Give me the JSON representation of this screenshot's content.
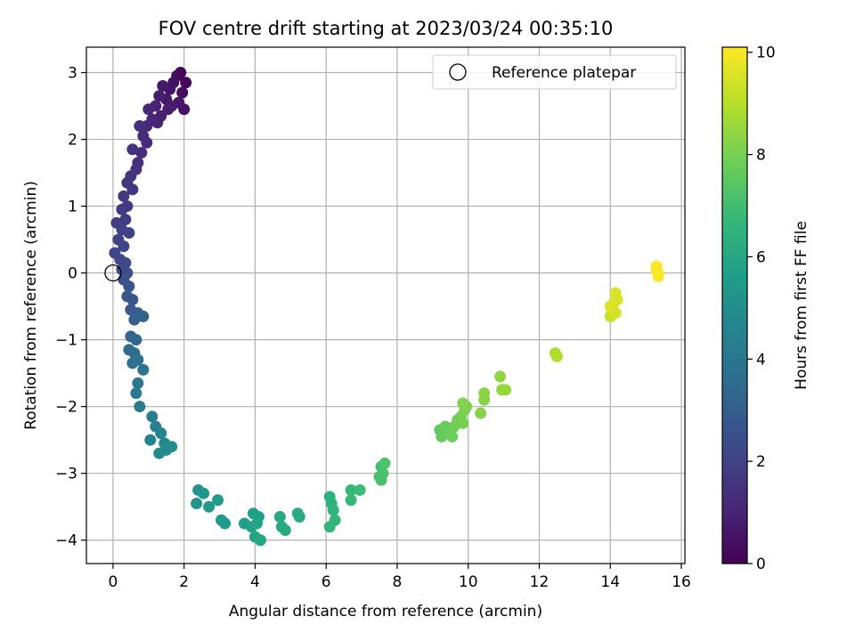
{
  "chart_data": {
    "type": "scatter",
    "title": "FOV centre drift starting at 2023/03/24 00:35:10",
    "xlabel": "Angular distance from reference (arcmin)",
    "ylabel": "Rotation from reference (arcmin)",
    "xlim": [
      -0.75,
      16.1
    ],
    "ylim": [
      -4.35,
      3.38
    ],
    "xticks": [
      0,
      2,
      4,
      6,
      8,
      10,
      12,
      14,
      16
    ],
    "yticks": [
      -4,
      -3,
      -2,
      -1,
      0,
      1,
      2,
      3
    ],
    "grid": true,
    "legend": {
      "position": "top-right",
      "entries": [
        "Reference platepar"
      ]
    },
    "reference_point": {
      "x": 0,
      "y": 0
    },
    "colorbar": {
      "label": "Hours from first FF file",
      "range": [
        0,
        10.1
      ],
      "ticks": [
        0,
        2,
        4,
        6,
        8,
        10
      ],
      "colormap": "viridis"
    },
    "series": [
      {
        "points": [
          [
            1.9,
            3.0,
            0.05
          ],
          [
            2.05,
            2.85,
            0.15
          ],
          [
            1.8,
            2.95,
            0.25
          ],
          [
            1.95,
            2.7,
            0.35
          ],
          [
            1.7,
            2.85,
            0.45
          ],
          [
            2.0,
            2.45,
            0.5
          ],
          [
            1.6,
            2.75,
            0.55
          ],
          [
            1.85,
            2.55,
            0.6
          ],
          [
            1.5,
            2.6,
            0.65
          ],
          [
            1.4,
            2.8,
            0.7
          ],
          [
            1.65,
            2.5,
            0.75
          ],
          [
            1.3,
            2.65,
            0.8
          ],
          [
            1.55,
            2.45,
            0.85
          ],
          [
            1.35,
            2.35,
            0.9
          ],
          [
            1.2,
            2.5,
            0.95
          ],
          [
            1.25,
            2.25,
            1.0
          ],
          [
            1.1,
            2.3,
            1.05
          ],
          [
            1.0,
            2.45,
            1.1
          ],
          [
            0.95,
            2.2,
            1.15
          ],
          [
            0.85,
            2.05,
            1.2
          ],
          [
            0.95,
            1.95,
            1.25
          ],
          [
            0.8,
            1.8,
            1.3
          ],
          [
            0.75,
            2.2,
            1.35
          ],
          [
            0.7,
            1.65,
            1.4
          ],
          [
            0.55,
            1.85,
            1.45
          ],
          [
            0.65,
            1.55,
            1.5
          ],
          [
            0.5,
            1.45,
            1.55
          ],
          [
            0.4,
            1.35,
            1.6
          ],
          [
            0.55,
            1.25,
            1.65
          ],
          [
            0.3,
            1.15,
            1.7
          ],
          [
            0.4,
            1.0,
            1.75
          ],
          [
            0.25,
            0.95,
            1.8
          ],
          [
            0.35,
            0.8,
            1.85
          ],
          [
            0.1,
            0.75,
            1.9
          ],
          [
            0.25,
            0.65,
            1.95
          ],
          [
            0.45,
            0.6,
            2.0
          ],
          [
            0.15,
            0.5,
            2.05
          ],
          [
            0.3,
            0.4,
            2.1
          ],
          [
            0.05,
            0.3,
            2.15
          ],
          [
            0.2,
            0.2,
            2.2
          ],
          [
            0.35,
            0.15,
            2.25
          ],
          [
            0.25,
            0.05,
            2.3
          ],
          [
            0.4,
            0.0,
            2.4
          ],
          [
            0.3,
            -0.1,
            2.5
          ],
          [
            0.45,
            -0.2,
            2.6
          ],
          [
            0.4,
            -0.35,
            2.7
          ],
          [
            0.55,
            -0.4,
            2.8
          ],
          [
            0.5,
            -0.55,
            2.9
          ],
          [
            0.7,
            -0.6,
            3.0
          ],
          [
            0.6,
            -0.7,
            3.1
          ],
          [
            0.85,
            -0.65,
            3.2
          ],
          [
            0.5,
            -0.95,
            3.3
          ],
          [
            0.65,
            -1.0,
            3.4
          ],
          [
            0.45,
            -1.15,
            3.5
          ],
          [
            0.6,
            -1.2,
            3.6
          ],
          [
            0.55,
            -1.35,
            3.7
          ],
          [
            0.7,
            -1.3,
            3.8
          ],
          [
            0.85,
            -1.45,
            3.9
          ],
          [
            0.7,
            -1.65,
            4.0
          ],
          [
            0.65,
            -1.8,
            4.1
          ],
          [
            0.75,
            -2.0,
            4.2
          ],
          [
            1.1,
            -2.15,
            4.3
          ],
          [
            1.2,
            -2.3,
            4.4
          ],
          [
            1.05,
            -2.5,
            4.5
          ],
          [
            1.35,
            -2.4,
            4.6
          ],
          [
            1.45,
            -2.55,
            4.7
          ],
          [
            1.3,
            -2.7,
            4.8
          ],
          [
            1.5,
            -2.65,
            4.9
          ],
          [
            1.65,
            -2.6,
            5.0
          ],
          [
            2.4,
            -3.25,
            5.2
          ],
          [
            2.55,
            -3.3,
            5.3
          ],
          [
            2.35,
            -3.45,
            5.35
          ],
          [
            2.7,
            -3.5,
            5.4
          ],
          [
            2.95,
            -3.4,
            5.45
          ],
          [
            3.05,
            -3.7,
            5.5
          ],
          [
            3.15,
            -3.75,
            5.55
          ],
          [
            3.7,
            -3.75,
            5.65
          ],
          [
            3.95,
            -3.6,
            5.7
          ],
          [
            4.1,
            -3.65,
            5.75
          ],
          [
            3.9,
            -3.8,
            5.8
          ],
          [
            4.05,
            -3.75,
            5.85
          ],
          [
            4.0,
            -3.95,
            5.9
          ],
          [
            4.15,
            -4.0,
            5.95
          ],
          [
            4.7,
            -3.65,
            6.05
          ],
          [
            4.75,
            -3.8,
            6.1
          ],
          [
            4.85,
            -3.85,
            6.15
          ],
          [
            5.2,
            -3.6,
            6.2
          ],
          [
            5.25,
            -3.65,
            6.25
          ],
          [
            6.1,
            -3.35,
            6.45
          ],
          [
            6.15,
            -3.45,
            6.5
          ],
          [
            6.2,
            -3.55,
            6.55
          ],
          [
            6.1,
            -3.8,
            6.6
          ],
          [
            6.25,
            -3.7,
            6.65
          ],
          [
            6.7,
            -3.25,
            6.75
          ],
          [
            6.7,
            -3.4,
            6.8
          ],
          [
            6.95,
            -3.25,
            6.85
          ],
          [
            7.55,
            -2.9,
            7.0
          ],
          [
            7.5,
            -3.05,
            7.05
          ],
          [
            7.55,
            -3.1,
            7.1
          ],
          [
            7.6,
            -3.0,
            7.15
          ],
          [
            7.65,
            -2.85,
            7.2
          ],
          [
            9.2,
            -2.35,
            7.6
          ],
          [
            9.25,
            -2.45,
            7.65
          ],
          [
            9.35,
            -2.3,
            7.7
          ],
          [
            9.5,
            -2.4,
            7.75
          ],
          [
            9.55,
            -2.45,
            7.8
          ],
          [
            9.6,
            -2.3,
            7.85
          ],
          [
            9.7,
            -2.2,
            7.9
          ],
          [
            9.8,
            -2.15,
            7.95
          ],
          [
            9.85,
            -2.25,
            8.0
          ],
          [
            9.9,
            -2.05,
            8.05
          ],
          [
            9.95,
            -2.0,
            8.1
          ],
          [
            9.85,
            -1.95,
            8.15
          ],
          [
            10.35,
            -2.1,
            8.2
          ],
          [
            10.45,
            -1.9,
            8.25
          ],
          [
            10.45,
            -1.8,
            8.3
          ],
          [
            10.9,
            -1.55,
            8.4
          ],
          [
            10.95,
            -1.75,
            8.45
          ],
          [
            11.05,
            -1.75,
            8.5
          ],
          [
            12.45,
            -1.2,
            8.85
          ],
          [
            12.5,
            -1.25,
            8.9
          ],
          [
            14.0,
            -0.65,
            9.3
          ],
          [
            14.05,
            -0.55,
            9.35
          ],
          [
            14.1,
            -0.45,
            9.4
          ],
          [
            14.15,
            -0.6,
            9.45
          ],
          [
            14.2,
            -0.4,
            9.5
          ],
          [
            14.15,
            -0.3,
            9.55
          ],
          [
            14.0,
            -0.5,
            9.6
          ],
          [
            15.3,
            0.05,
            9.9
          ],
          [
            15.35,
            -0.05,
            10.0
          ],
          [
            15.3,
            0.1,
            10.05
          ],
          [
            15.35,
            0.0,
            10.1
          ]
        ]
      }
    ]
  }
}
